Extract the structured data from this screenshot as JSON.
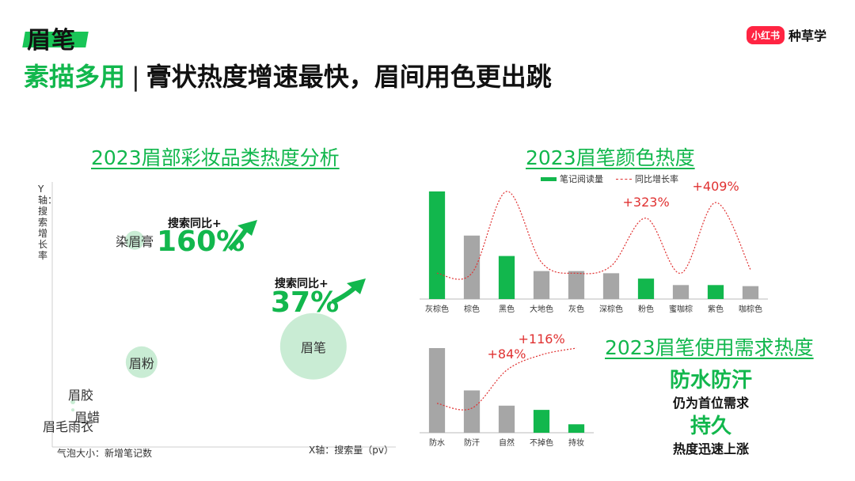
{
  "header": {
    "tag": "眉笔",
    "headline_green": "素描多用",
    "headline_sep": "|",
    "headline_rest": "膏状热度增速最快，眉间用色更出跳",
    "brand_logo": "小红书",
    "brand_name": "种草学"
  },
  "colors": {
    "green": "#12b74d",
    "gray": "#a6a6a6",
    "red": "#e03131",
    "bubble": "#bfe9cc"
  },
  "icons": [
    "growth-arrow-icon"
  ],
  "chart_data": [
    {
      "type": "scatter",
      "title": "2023眉部彩妆品类热度分析",
      "xlabel": "X轴：搜索量（pv）",
      "ylabel": "Y轴：搜索增长率",
      "size_label": "气泡大小：新增笔记数",
      "points": [
        {
          "name": "染眉膏",
          "x": 24,
          "y": 78,
          "size": 12
        },
        {
          "name": "眉笔",
          "x": 76,
          "y": 38,
          "size": 42
        },
        {
          "name": "眉粉",
          "x": 26,
          "y": 32,
          "size": 20
        },
        {
          "name": "眉胶",
          "x": 6,
          "y": 17,
          "size": 3
        },
        {
          "name": "眉蜡",
          "x": 6,
          "y": 14,
          "size": 2
        },
        {
          "name": "眉毛雨衣",
          "x": 8,
          "y": 8,
          "size": 1
        }
      ],
      "annotations": [
        {
          "label": "搜索同比+",
          "value": "160%"
        },
        {
          "label": "搜索同比+",
          "value": "37%"
        }
      ]
    },
    {
      "type": "bar",
      "title": "2023眉笔颜色热度",
      "legend": [
        "笔记阅读量",
        "同比增长率"
      ],
      "categories": [
        "灰棕色",
        "棕色",
        "黑色",
        "大地色",
        "灰色",
        "深棕色",
        "粉色",
        "蜜咖棕",
        "紫色",
        "咖棕色"
      ],
      "values": [
        100,
        59,
        40,
        26,
        26,
        24,
        19,
        13,
        13,
        12
      ],
      "highlight": [
        true,
        false,
        true,
        false,
        false,
        false,
        true,
        false,
        true,
        false
      ],
      "line_values": [
        20,
        20,
        470,
        80,
        20,
        60,
        323,
        20,
        409,
        40
      ],
      "line_labels": [
        {
          "index": 6,
          "text": "+323%"
        },
        {
          "index": 8,
          "text": "+409%"
        }
      ]
    },
    {
      "type": "bar",
      "title": "2023眉笔使用需求热度",
      "categories": [
        "防水",
        "防汗",
        "自然",
        "不掉色",
        "持妆"
      ],
      "values": [
        100,
        50,
        32,
        27,
        10
      ],
      "highlight": [
        false,
        false,
        false,
        true,
        true
      ],
      "line_values": [
        15,
        5,
        84,
        116,
        130
      ],
      "line_labels": [
        {
          "index": 2,
          "text": "+84%"
        },
        {
          "index": 3,
          "text": "+116%"
        }
      ]
    }
  ],
  "usage_summary": {
    "item1": "防水防汗",
    "item1_note": "仍为首位需求",
    "item2": "持久",
    "item2_note": "热度迅速上涨"
  }
}
